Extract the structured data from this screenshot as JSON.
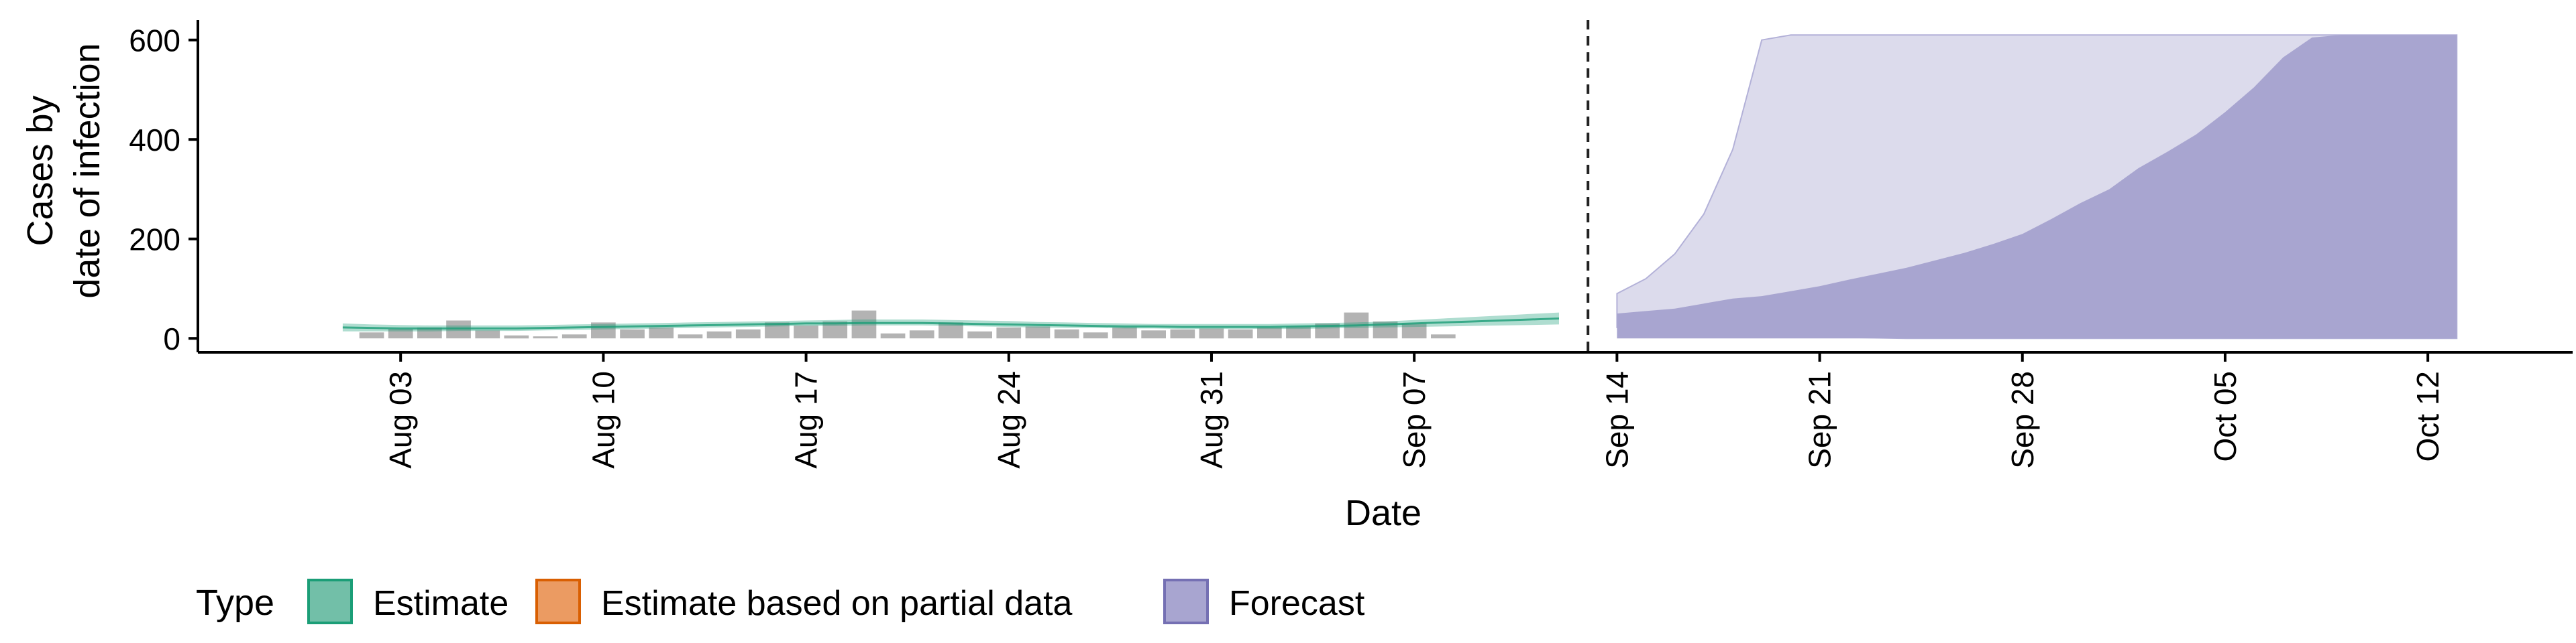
{
  "chart_data": {
    "type": "area",
    "xlabel": "Date",
    "ylabel_lines": [
      "Cases by",
      "date of infection"
    ],
    "ylim": [
      -28,
      640
    ],
    "xlim": [
      "2020-07-27",
      "2020-10-17"
    ],
    "yticks": [
      0,
      200,
      400,
      600
    ],
    "xticks": [
      {
        "date": "2020-08-03",
        "label": "Aug 03"
      },
      {
        "date": "2020-08-10",
        "label": "Aug 10"
      },
      {
        "date": "2020-08-17",
        "label": "Aug 17"
      },
      {
        "date": "2020-08-24",
        "label": "Aug 24"
      },
      {
        "date": "2020-08-31",
        "label": "Aug 31"
      },
      {
        "date": "2020-09-07",
        "label": "Sep 07"
      },
      {
        "date": "2020-09-14",
        "label": "Sep 14"
      },
      {
        "date": "2020-09-21",
        "label": "Sep 21"
      },
      {
        "date": "2020-09-28",
        "label": "Sep 28"
      },
      {
        "date": "2020-10-05",
        "label": "Oct 05"
      },
      {
        "date": "2020-10-12",
        "label": "Oct 12"
      }
    ],
    "forecast_start": "2020-09-13",
    "bars": {
      "start": "2020-08-02",
      "values": [
        12,
        19,
        22,
        36,
        16,
        6,
        4,
        8,
        32,
        18,
        22,
        8,
        14,
        18,
        32,
        26,
        34,
        56,
        10,
        16,
        32,
        14,
        22,
        24,
        18,
        12,
        22,
        16,
        18,
        20,
        18,
        22,
        24,
        30,
        52,
        34,
        30,
        8
      ],
      "color": "#b3b3b3"
    },
    "estimate": {
      "start": "2020-08-01",
      "median": [
        22,
        21,
        20,
        20,
        20,
        20,
        20,
        21,
        22,
        23,
        24,
        25,
        26,
        27,
        28,
        29,
        30,
        30,
        31,
        31,
        31,
        30,
        29,
        28,
        27,
        26,
        25,
        24,
        24,
        23,
        23,
        23,
        23,
        24,
        25,
        26,
        28,
        30,
        32,
        34,
        36,
        38,
        40
      ],
      "lower": [
        14,
        14,
        14,
        14,
        15,
        15,
        15,
        16,
        17,
        18,
        19,
        20,
        21,
        22,
        23,
        24,
        25,
        25,
        26,
        26,
        26,
        25,
        24,
        23,
        22,
        21,
        21,
        20,
        20,
        19,
        19,
        19,
        19,
        19,
        20,
        21,
        22,
        23,
        24,
        25,
        26,
        27,
        28
      ],
      "upper": [
        30,
        28,
        27,
        26,
        26,
        26,
        26,
        27,
        28,
        29,
        30,
        31,
        32,
        33,
        34,
        35,
        36,
        37,
        38,
        38,
        38,
        37,
        36,
        35,
        33,
        32,
        31,
        30,
        29,
        29,
        29,
        29,
        29,
        30,
        31,
        32,
        34,
        37,
        40,
        43,
        46,
        49,
        52
      ],
      "color": "#1b9e77"
    },
    "forecast": {
      "start": "2020-09-14",
      "outer_lower": [
        22,
        20,
        18,
        15,
        12,
        8,
        6,
        4,
        2,
        1,
        0,
        0,
        0,
        0,
        0,
        0,
        0,
        0,
        0,
        0,
        0,
        0,
        0,
        0,
        0,
        0,
        0,
        0,
        0,
        0
      ],
      "outer_upper": [
        90,
        120,
        170,
        250,
        380,
        600,
        610,
        610,
        610,
        610,
        610,
        610,
        610,
        610,
        610,
        610,
        610,
        610,
        610,
        610,
        610,
        610,
        610,
        610,
        610,
        610,
        610,
        610,
        610,
        610
      ],
      "inner_lower": [
        50,
        55,
        60,
        70,
        80,
        85,
        95,
        105,
        118,
        130,
        142,
        157,
        172,
        190,
        210,
        240,
        272,
        300,
        342,
        375,
        410,
        455,
        505,
        565,
        605,
        610,
        610,
        610,
        610,
        610
      ],
      "inner_upper_fill": "#a8a5d0",
      "outer_fill": "#dcdbec",
      "outer_stroke": "#b3b1d8"
    },
    "legend": {
      "title": "Type",
      "position": "bottom-left",
      "items": [
        {
          "label": "Estimate",
          "fill": "#72bfa8",
          "stroke": "#1b9e77"
        },
        {
          "label": "Estimate based on partial data",
          "fill": "#eb9b62",
          "stroke": "#d95f02"
        },
        {
          "label": "Forecast",
          "fill": "#a8a5d0",
          "stroke": "#7570b3"
        }
      ]
    }
  }
}
